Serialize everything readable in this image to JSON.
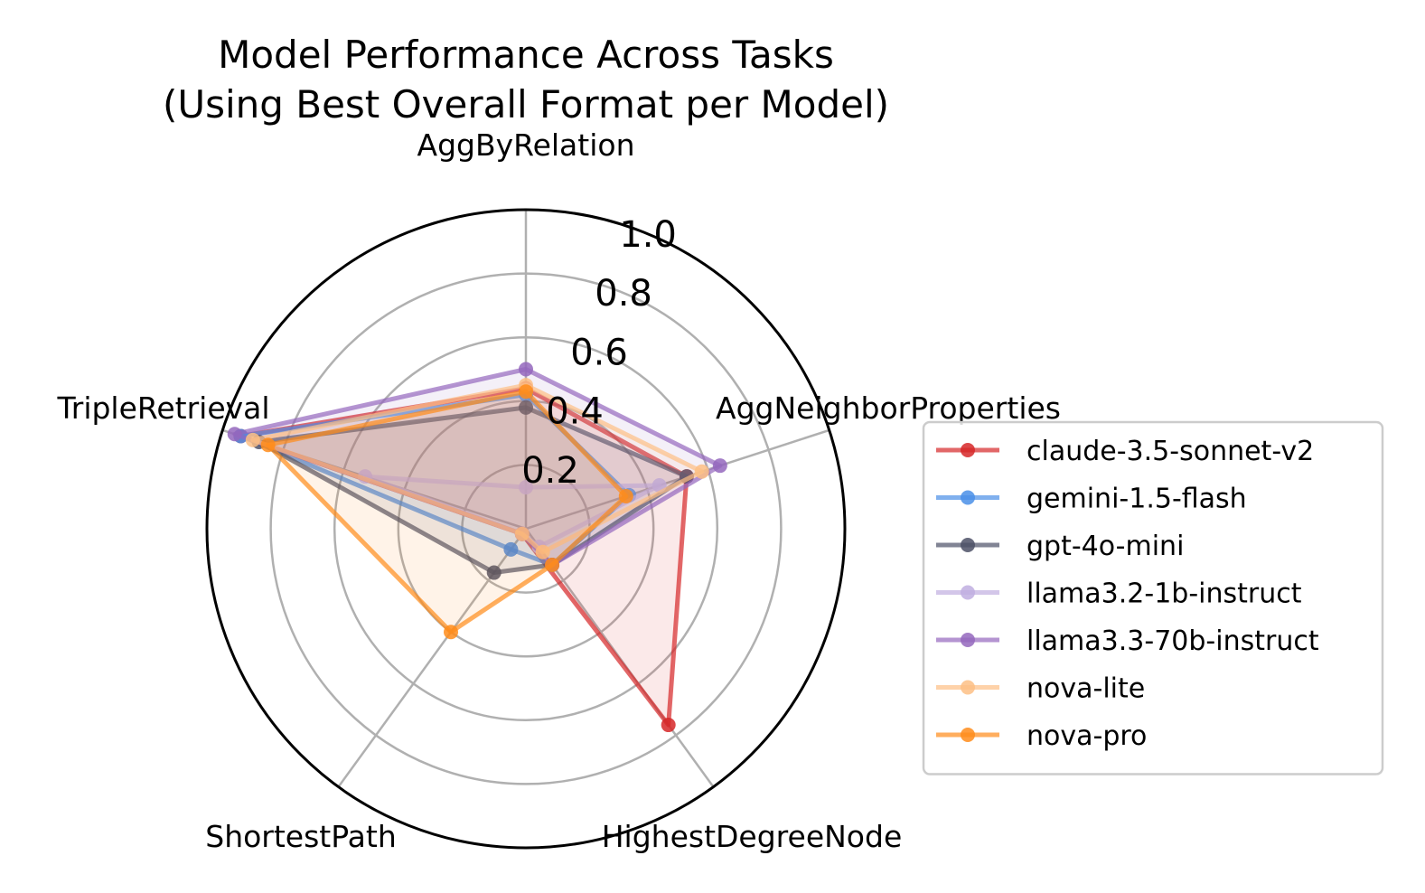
{
  "chart_data": {
    "type": "radar",
    "title": [
      "Model Performance Across Tasks",
      "(Using Best Overall Format per Model)"
    ],
    "axes": [
      "AggByRelation",
      "AggNeighborProperties",
      "HighestDegreeNode",
      "ShortestPath",
      "TripleRetrieval"
    ],
    "rlim": [
      0,
      1.0
    ],
    "rticks": [
      0.2,
      0.4,
      0.6,
      0.8,
      1.0
    ],
    "rtick_labels": [
      "0.2",
      "0.4",
      "0.6",
      "0.8",
      "1.0"
    ],
    "grid": true,
    "legend_position": "right",
    "series": [
      {
        "name": "claude-3.5-sonnet-v2",
        "color": "#d62728",
        "alpha": 0.1,
        "values": [
          0.44,
          0.53,
          0.76,
          0.02,
          0.94
        ]
      },
      {
        "name": "gemini-1.5-flash",
        "color": "#4a8fe7",
        "alpha": 0.1,
        "values": [
          0.42,
          0.34,
          0.14,
          0.08,
          0.94
        ]
      },
      {
        "name": "gpt-4o-mini",
        "color": "#4c5066",
        "alpha": 0.1,
        "values": [
          0.38,
          0.53,
          0.14,
          0.17,
          0.88
        ]
      },
      {
        "name": "llama3.2-1b-instruct",
        "color": "#c0aee0",
        "alpha": 0.1,
        "values": [
          0.13,
          0.44,
          0.07,
          0.02,
          0.53
        ]
      },
      {
        "name": "llama3.3-70b-instruct",
        "color": "#9467bd",
        "alpha": 0.1,
        "values": [
          0.5,
          0.64,
          0.14,
          0.02,
          0.96
        ]
      },
      {
        "name": "nova-lite",
        "color": "#fdbf85",
        "alpha": 0.1,
        "values": [
          0.45,
          0.58,
          0.09,
          0.02,
          0.9
        ]
      },
      {
        "name": "nova-pro",
        "color": "#ff8c1a",
        "alpha": 0.1,
        "values": [
          0.43,
          0.33,
          0.14,
          0.4,
          0.85
        ]
      }
    ]
  }
}
